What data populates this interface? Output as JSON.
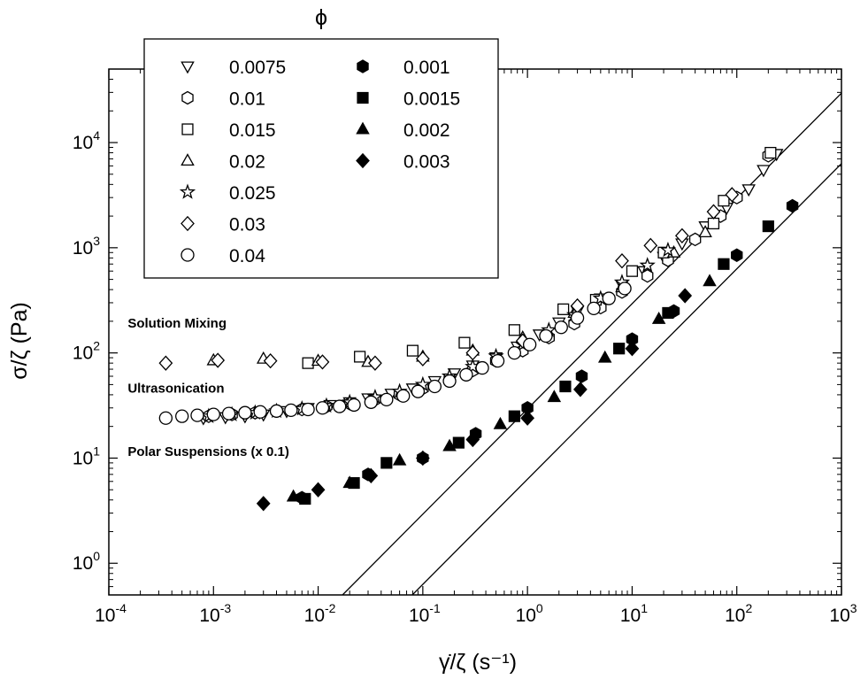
{
  "chart_data": {
    "type": "scatter",
    "xscale": "log",
    "yscale": "log",
    "xlim": [
      0.0001,
      1000
    ],
    "ylim": [
      0.5,
      50000
    ],
    "xlabel": "γ̇/ζ  (s⁻¹)",
    "ylabel": "σ/ζ (Pa)",
    "x_ticks": [
      {
        "base": "10",
        "exp": "-4",
        "value": 0.0001
      },
      {
        "base": "10",
        "exp": "-3",
        "value": 0.001
      },
      {
        "base": "10",
        "exp": "-2",
        "value": 0.01
      },
      {
        "base": "10",
        "exp": "-1",
        "value": 0.1
      },
      {
        "base": "10",
        "exp": "0",
        "value": 1
      },
      {
        "base": "10",
        "exp": "1",
        "value": 10
      },
      {
        "base": "10",
        "exp": "2",
        "value": 100
      },
      {
        "base": "10",
        "exp": "3",
        "value": 1000
      }
    ],
    "y_ticks": [
      {
        "base": "10",
        "exp": "0",
        "value": 1
      },
      {
        "base": "10",
        "exp": "1",
        "value": 10
      },
      {
        "base": "10",
        "exp": "2",
        "value": 100
      },
      {
        "base": "10",
        "exp": "3",
        "value": 1000
      },
      {
        "base": "10",
        "exp": "4",
        "value": 10000
      }
    ],
    "legend_title": "ϕ",
    "legend_position": "top-left",
    "annotations": [
      {
        "text": "Solution Mixing",
        "x": 0.00033,
        "y": 175
      },
      {
        "text": "Ultrasonication",
        "x": 0.00033,
        "y": 42
      },
      {
        "text": "Polar Suspensions (x 0.1)",
        "x": 0.00033,
        "y": 10.5
      }
    ],
    "reference_lines": [
      {
        "points": [
          [
            0.0171,
            0.5
          ],
          [
            1000,
            29500
          ]
        ]
      },
      {
        "points": [
          [
            0.0794,
            0.5
          ],
          [
            1000,
            6300
          ]
        ]
      }
    ],
    "series": [
      {
        "name": "0.0075",
        "marker": "triangle-down",
        "filled": false,
        "points": [
          [
            0.0008,
            24
          ],
          [
            0.0013,
            24.5
          ],
          [
            0.002,
            25
          ],
          [
            0.003,
            26
          ],
          [
            0.005,
            28
          ],
          [
            0.008,
            30
          ],
          [
            0.013,
            32
          ],
          [
            0.02,
            34
          ],
          [
            0.03,
            37
          ],
          [
            0.05,
            41
          ],
          [
            0.08,
            46
          ],
          [
            0.13,
            54
          ],
          [
            0.2,
            64
          ],
          [
            0.3,
            76
          ],
          [
            0.5,
            91
          ],
          [
            0.8,
            115
          ],
          [
            1.3,
            150
          ],
          [
            2,
            195
          ],
          [
            3,
            250
          ],
          [
            5,
            330
          ],
          [
            8,
            440
          ],
          [
            13,
            600
          ],
          [
            20,
            820
          ],
          [
            30,
            1100
          ],
          [
            50,
            1600
          ],
          [
            80,
            2400
          ],
          [
            130,
            3600
          ],
          [
            180,
            5500
          ],
          [
            240,
            7800
          ]
        ]
      },
      {
        "name": "0.01",
        "marker": "hexagon",
        "filled": false,
        "points": [
          [
            0.0009,
            25
          ],
          [
            0.0015,
            26
          ],
          [
            0.0025,
            27
          ],
          [
            0.004,
            28
          ],
          [
            0.007,
            29
          ],
          [
            0.012,
            31
          ],
          [
            0.02,
            33
          ],
          [
            0.035,
            36
          ],
          [
            0.06,
            40
          ],
          [
            0.1,
            46
          ],
          [
            0.18,
            56
          ],
          [
            0.3,
            68
          ],
          [
            0.5,
            84
          ],
          [
            0.9,
            105
          ],
          [
            1.6,
            140
          ],
          [
            2.8,
            190
          ],
          [
            5,
            270
          ],
          [
            8,
            380
          ],
          [
            14,
            540
          ],
          [
            22,
            760
          ],
          [
            40,
            1200
          ],
          [
            70,
            2000
          ],
          [
            100,
            3000
          ],
          [
            200,
            7500
          ]
        ]
      },
      {
        "name": "0.015",
        "marker": "square",
        "filled": false,
        "points": [
          [
            0.008,
            80
          ],
          [
            0.025,
            92
          ],
          [
            0.08,
            105
          ],
          [
            0.25,
            125
          ],
          [
            0.75,
            165
          ],
          [
            2.2,
            260
          ],
          [
            4.5,
            320
          ],
          [
            10,
            600
          ],
          [
            20,
            900
          ],
          [
            60,
            1700
          ],
          [
            75,
            2800
          ],
          [
            210,
            8000
          ]
        ]
      },
      {
        "name": "0.02",
        "marker": "triangle-up",
        "filled": false,
        "points": [
          [
            0.001,
            85
          ],
          [
            0.003,
            88
          ],
          [
            0.01,
            84
          ],
          [
            0.03,
            82
          ],
          [
            0.1,
            92
          ],
          [
            0.3,
            105
          ],
          [
            0.9,
            140
          ],
          [
            2.8,
            240
          ],
          [
            8,
            420
          ],
          [
            25,
            900
          ],
          [
            50,
            1400
          ]
        ]
      },
      {
        "name": "0.025",
        "marker": "star",
        "filled": false,
        "points": [
          [
            0.0009,
            25
          ],
          [
            0.0015,
            26
          ],
          [
            0.0025,
            27
          ],
          [
            0.004,
            28
          ],
          [
            0.007,
            29.5
          ],
          [
            0.012,
            31.5
          ],
          [
            0.02,
            34
          ],
          [
            0.035,
            38
          ],
          [
            0.06,
            43
          ],
          [
            0.1,
            50
          ],
          [
            0.18,
            60
          ],
          [
            0.3,
            74
          ],
          [
            0.5,
            93
          ],
          [
            0.9,
            120
          ],
          [
            1.6,
            165
          ],
          [
            2.8,
            230
          ],
          [
            5,
            330
          ],
          [
            8,
            470
          ],
          [
            14,
            680
          ],
          [
            22,
            950
          ]
        ]
      },
      {
        "name": "0.03",
        "marker": "diamond",
        "filled": false,
        "points": [
          [
            0.00035,
            80
          ],
          [
            0.0011,
            85
          ],
          [
            0.0035,
            84
          ],
          [
            0.011,
            82
          ],
          [
            0.035,
            80
          ],
          [
            0.1,
            88
          ],
          [
            0.3,
            100
          ],
          [
            0.9,
            130
          ],
          [
            3,
            280
          ],
          [
            8,
            750
          ],
          [
            15,
            1050
          ],
          [
            30,
            1300
          ],
          [
            60,
            2200
          ],
          [
            90,
            3200
          ]
        ]
      },
      {
        "name": "0.04",
        "marker": "circle",
        "filled": false,
        "points": [
          [
            0.00035,
            24
          ],
          [
            0.0005,
            25
          ],
          [
            0.0007,
            25.5
          ],
          [
            0.001,
            26
          ],
          [
            0.0014,
            26.5
          ],
          [
            0.002,
            27
          ],
          [
            0.0028,
            27.5
          ],
          [
            0.004,
            28
          ],
          [
            0.0055,
            28.5
          ],
          [
            0.008,
            29
          ],
          [
            0.011,
            30
          ],
          [
            0.016,
            31
          ],
          [
            0.022,
            32
          ],
          [
            0.032,
            34
          ],
          [
            0.045,
            36
          ],
          [
            0.065,
            39
          ],
          [
            0.09,
            43
          ],
          [
            0.13,
            48
          ],
          [
            0.18,
            54
          ],
          [
            0.26,
            62
          ],
          [
            0.37,
            72
          ],
          [
            0.52,
            84
          ],
          [
            0.75,
            100
          ],
          [
            1.05,
            120
          ],
          [
            1.5,
            145
          ],
          [
            2.1,
            175
          ],
          [
            3,
            215
          ],
          [
            4.3,
            265
          ],
          [
            6,
            330
          ],
          [
            8.5,
            410
          ]
        ]
      },
      {
        "name": "0.001",
        "marker": "hexagon",
        "filled": true,
        "points": [
          [
            0.007,
            4.2
          ],
          [
            0.03,
            7
          ],
          [
            0.1,
            10
          ],
          [
            0.32,
            17
          ],
          [
            1,
            30
          ],
          [
            3.3,
            60
          ],
          [
            10,
            135
          ],
          [
            25,
            250
          ],
          [
            100,
            850
          ],
          [
            340,
            2500
          ]
        ]
      },
      {
        "name": "0.0015",
        "marker": "square",
        "filled": true,
        "points": [
          [
            0.0075,
            4.1
          ],
          [
            0.022,
            5.8
          ],
          [
            0.045,
            9
          ],
          [
            0.22,
            14
          ],
          [
            0.75,
            25
          ],
          [
            2.3,
            48
          ],
          [
            7.5,
            110
          ],
          [
            22,
            240
          ],
          [
            75,
            700
          ],
          [
            200,
            1600
          ]
        ]
      },
      {
        "name": "0.002",
        "marker": "triangle-up",
        "filled": true,
        "points": [
          [
            0.0058,
            4.3
          ],
          [
            0.02,
            5.8
          ],
          [
            0.06,
            9.5
          ],
          [
            0.18,
            13
          ],
          [
            0.55,
            21
          ],
          [
            1.8,
            38
          ],
          [
            5.5,
            90
          ],
          [
            18,
            210
          ],
          [
            55,
            480
          ]
        ]
      },
      {
        "name": "0.003",
        "marker": "diamond",
        "filled": true,
        "points": [
          [
            0.003,
            3.7
          ],
          [
            0.01,
            5
          ],
          [
            0.032,
            6.8
          ],
          [
            0.1,
            10
          ],
          [
            0.3,
            15
          ],
          [
            1,
            24
          ],
          [
            3.2,
            45
          ],
          [
            10,
            110
          ],
          [
            32,
            350
          ]
        ]
      }
    ]
  }
}
